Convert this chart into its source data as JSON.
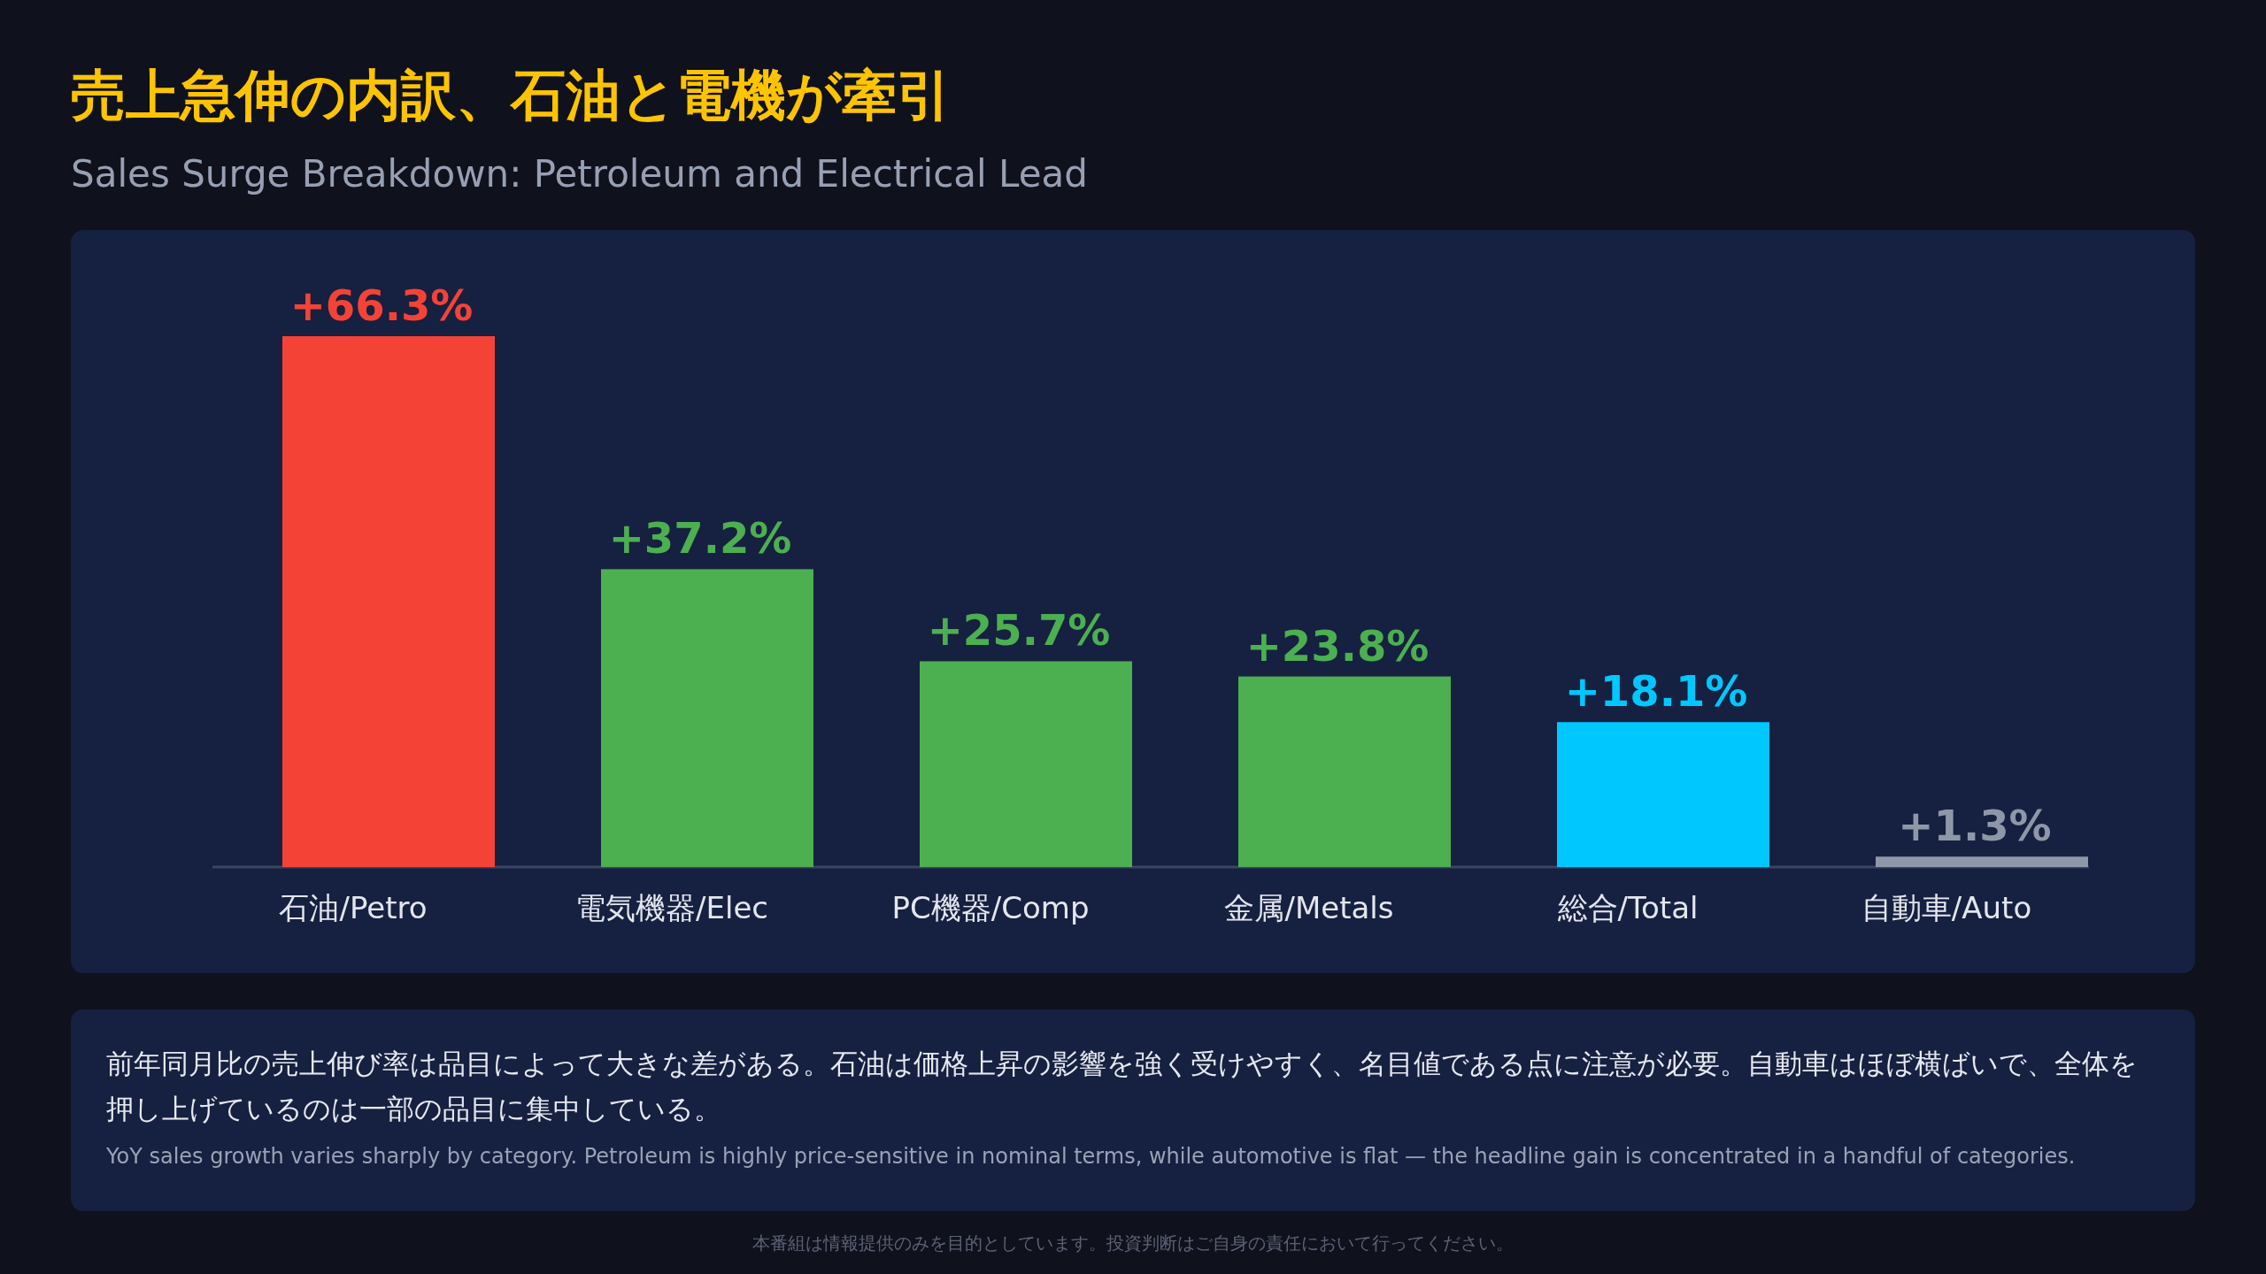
{
  "chart_data": {
    "type": "bar",
    "title": "売上急伸の内訳、石油と電機が牽引",
    "subtitle": "Sales Surge Breakdown: Petroleum and Electrical Lead",
    "categories": [
      "石油/Petro",
      "電気機器/Elec",
      "PC機器/Comp",
      "金属/Metals",
      "総合/Total",
      "自動車/Auto"
    ],
    "values": [
      66.3,
      37.2,
      25.7,
      23.8,
      18.1,
      1.3
    ],
    "colors": [
      "#f44336",
      "#4caf50",
      "#4caf50",
      "#4caf50",
      "#00c8ff",
      "#8e97a8"
    ],
    "value_labels": [
      "+66.3%",
      "+37.2%",
      "+25.7%",
      "+23.8%",
      "+18.1%",
      "+1.3%"
    ],
    "annotations": [
      "前年同月比の売上伸び率は品目によって大きな差がある。石油は価格上昇の影響を強く受けやすく、名目値である点に注意が必要。自動車はほぼ横ばいで、全体を押し上げているのは一部の品目に集中している。",
      "YoY sales growth varies sharply by category. Petroleum is highly price-sensitive in nominal terms, while automotive is flat — the headline gain is concentrated in a handful of categories.",
      "本番組は情報提供のみを目的としています。投資判断はご自身の責任において行ってください。"
    ]
  }
}
